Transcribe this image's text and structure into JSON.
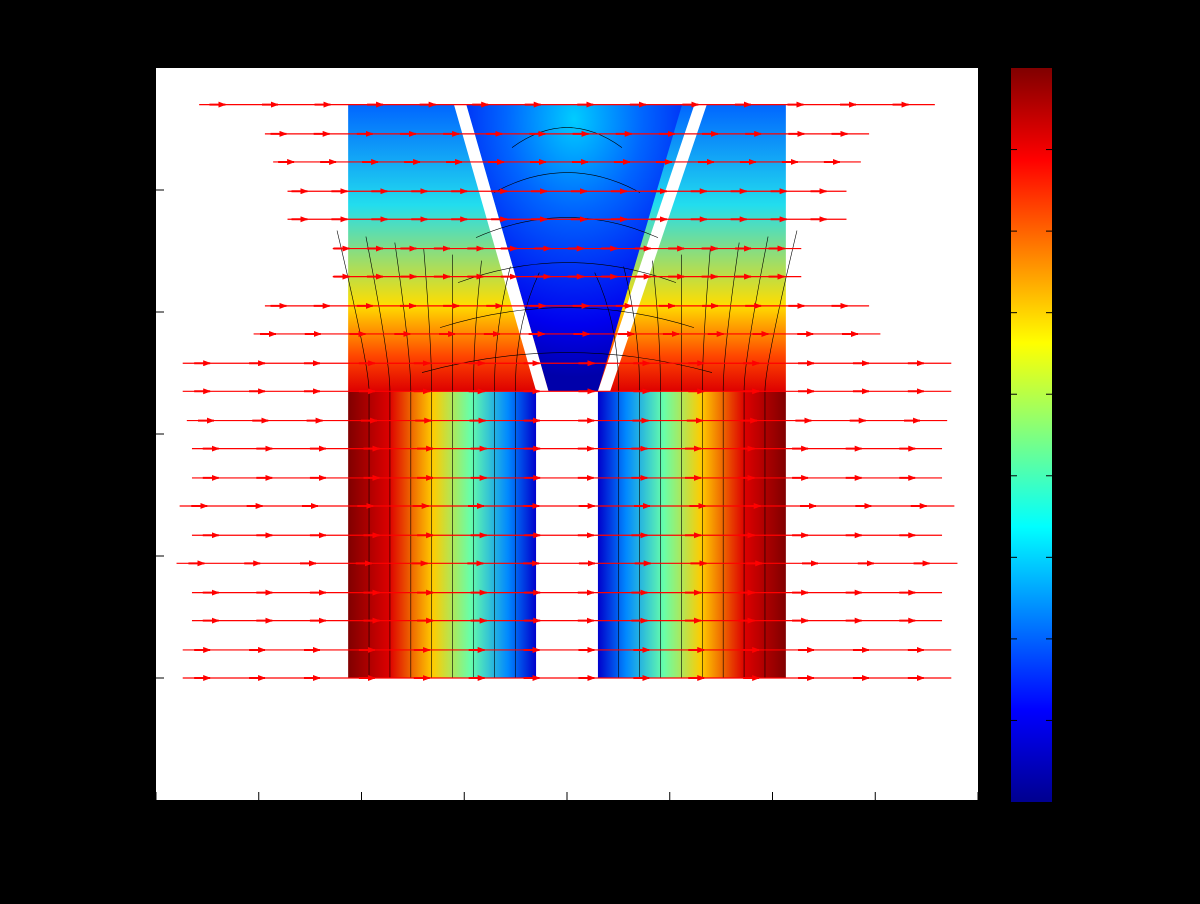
{
  "figure": {
    "background": "#000000",
    "axes_background": "#ffffff",
    "title": ""
  },
  "chart_data": {
    "type": "heatmap",
    "title": "",
    "xlabel": "",
    "ylabel": "",
    "xlim": [
      0,
      8
    ],
    "ylim": [
      0,
      6
    ],
    "xticks": [
      0,
      1,
      2,
      3,
      4,
      5,
      6,
      7,
      8
    ],
    "yticks": [
      1,
      2,
      3,
      4,
      5
    ],
    "tick_labels_shown": false,
    "grid": false,
    "colormap": "jet",
    "colorbar": {
      "placement": "right",
      "tick_count": 8,
      "tick_labels_shown": false
    },
    "field_region": {
      "x": [
        1.87,
        6.13
      ],
      "y": [
        1,
        5.7
      ]
    },
    "slot": {
      "lower_gap_x": [
        3.7,
        4.3
      ],
      "lower_gap_y": [
        1,
        3.35
      ],
      "upper_cuts": [
        {
          "from": [
            2.9,
            5.7
          ],
          "to": [
            3.76,
            3.35
          ],
          "width": 0.12
        },
        {
          "from": [
            5.24,
            5.7
          ],
          "to": [
            4.36,
            3.35
          ],
          "width": 0.12
        }
      ]
    },
    "contours": {
      "count": 16,
      "color": "#000000"
    },
    "vector_field": {
      "color": "#ff0000",
      "rows_y": [
        1.0,
        1.23,
        1.47,
        1.7,
        1.94,
        2.17,
        2.41,
        2.64,
        2.88,
        3.11,
        3.35,
        3.58,
        3.82,
        4.05,
        4.29,
        4.52,
        4.76,
        4.99,
        5.23,
        5.46,
        5.7
      ],
      "extent_x": [
        [
          0.26,
          7.74
        ],
        [
          0.26,
          7.74
        ],
        [
          0.35,
          7.65
        ],
        [
          0.35,
          7.65
        ],
        [
          0.2,
          7.8
        ],
        [
          0.35,
          7.65
        ],
        [
          0.23,
          7.77
        ],
        [
          0.35,
          7.65
        ],
        [
          0.35,
          7.65
        ],
        [
          0.3,
          7.7
        ],
        [
          0.26,
          7.74
        ],
        [
          0.26,
          7.74
        ],
        [
          0.95,
          7.05
        ],
        [
          1.06,
          6.94
        ],
        [
          1.72,
          6.28
        ],
        [
          1.72,
          6.28
        ],
        [
          1.28,
          6.72
        ],
        [
          1.28,
          6.72
        ],
        [
          1.14,
          6.86
        ],
        [
          1.06,
          6.94
        ],
        [
          0.42,
          7.58
        ]
      ]
    }
  }
}
